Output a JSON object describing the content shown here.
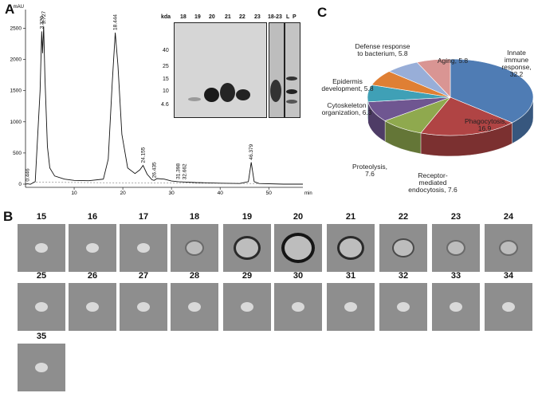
{
  "panels": {
    "a": "A",
    "b": "B",
    "c": "C"
  },
  "chromatogram": {
    "y_unit": "mAU",
    "x_unit": "min",
    "y_ticks": [
      "0",
      "500",
      "1000",
      "1500",
      "2000",
      "2500"
    ],
    "x_ticks": [
      "10",
      "20",
      "30",
      "40",
      "50"
    ],
    "peak_labels": [
      "0.446",
      "3.320",
      "3.727",
      "18.444",
      "24.155",
      "26.435",
      "31.398",
      "32.662",
      "46.379"
    ]
  },
  "gel": {
    "unit": "kda",
    "lanes": [
      "18",
      "19",
      "20",
      "21",
      "22",
      "23"
    ],
    "mw": [
      "40",
      "25",
      "15",
      "10",
      "4.6"
    ],
    "extra_lanes": [
      "18-23",
      "L",
      "P"
    ]
  },
  "assay": {
    "fractions": [
      "15",
      "16",
      "17",
      "18",
      "19",
      "20",
      "21",
      "22",
      "23",
      "24",
      "25",
      "26",
      "27",
      "28",
      "29",
      "30",
      "31",
      "32",
      "33",
      "34",
      "35"
    ],
    "active": {
      "18": "faint",
      "19": "strong",
      "20": "strongest",
      "21": "strong",
      "22": "medium",
      "23": "faint",
      "24": "faint"
    }
  },
  "pie": {
    "labels": [
      "Innate immune response, 32.2",
      "Phagocytosis, 16.9",
      "Receptor-mediated endocytosis, 7.6",
      "Proteolysis, 7.6",
      "Cytoskeleton organization, 6.3",
      "Epidermis development, 5.8",
      "Defense response to bacterium, 5.8",
      "Aging, 5.8"
    ]
  },
  "chart_data": [
    {
      "type": "line",
      "xlabel": "min",
      "ylabel": "mAU",
      "xlim": [
        0,
        57
      ],
      "ylim": [
        -50,
        2800
      ],
      "series": [
        {
          "x": [
            0,
            0.45,
            1,
            2,
            3,
            3.32,
            3.5,
            3.73,
            4,
            4.5,
            5,
            6,
            8,
            10,
            13,
            16,
            17,
            17.8,
            18.44,
            19,
            19.8,
            21,
            22.5,
            23.5,
            24.16,
            25,
            26,
            26.44,
            27,
            28.5,
            30,
            31.4,
            32.66,
            35,
            40,
            44,
            45.8,
            46.38,
            47,
            48,
            53,
            57
          ],
          "y": [
            0,
            5,
            -3,
            40,
            1500,
            2450,
            2100,
            2530,
            1700,
            600,
            260,
            130,
            80,
            60,
            55,
            80,
            400,
            1600,
            2430,
            1900,
            800,
            260,
            170,
            230,
            300,
            160,
            70,
            60,
            90,
            80,
            50,
            40,
            35,
            25,
            15,
            10,
            40,
            350,
            40,
            10,
            0,
            0
          ]
        }
      ]
    },
    {
      "type": "pie",
      "categories": [
        "Innate immune response",
        "Phagocytosis",
        "Receptor-mediated endocytosis",
        "Proteolysis",
        "Cytoskeleton organization",
        "Epidermis development",
        "Defense response to bacterium",
        "Aging"
      ],
      "values": [
        32.2,
        16.9,
        7.6,
        7.6,
        6.3,
        5.8,
        5.8,
        5.8
      ],
      "colors": [
        "#4f7cb4",
        "#b04444",
        "#8fa94e",
        "#6f5691",
        "#3fa0b6",
        "#df7f34",
        "#98aed8",
        "#d99593",
        "#c2d89b",
        "#b4a7cb"
      ]
    }
  ]
}
